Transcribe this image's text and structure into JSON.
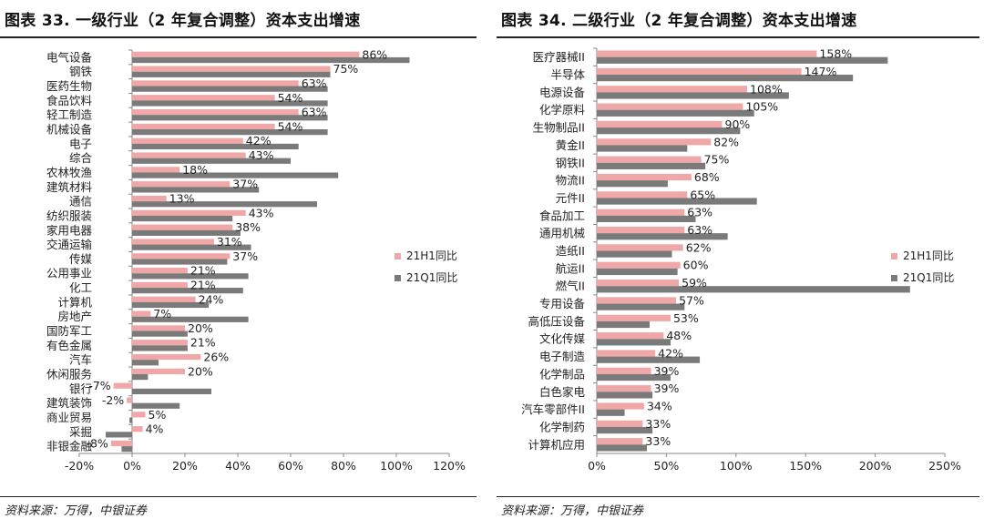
{
  "left": {
    "title": "图表 33. 一级行业（2 年复合调整）资本支出增速",
    "source": "资料来源：万得，中银证券"
  },
  "right": {
    "title": "图表 34. 二级行业（2 年复合调整）资本支出增速",
    "source": "资料来源：万得，中银证券"
  },
  "colors": {
    "h1": "#f0a7a8",
    "q1": "#7a7a7a",
    "axis": "#888888",
    "text": "#222222"
  },
  "chart_data": [
    {
      "type": "bar",
      "orientation": "horizontal",
      "title": "图表 33. 一级行业（2 年复合调整）资本支出增速",
      "categories": [
        "电气设备",
        "钢铁",
        "医药生物",
        "食品饮料",
        "轻工制造",
        "机械设备",
        "电子",
        "综合",
        "农林牧渔",
        "建筑材料",
        "通信",
        "纺织服装",
        "家用电器",
        "交通运输",
        "传媒",
        "公用事业",
        "化工",
        "计算机",
        "房地产",
        "国防军工",
        "有色金属",
        "汽车",
        "休闲服务",
        "银行",
        "建筑装饰",
        "商业贸易",
        "采掘",
        "非银金融"
      ],
      "series": [
        {
          "name": "21H1同比",
          "values": [
            86,
            75,
            63,
            54,
            63,
            54,
            42,
            43,
            18,
            37,
            13,
            43,
            38,
            31,
            37,
            21,
            21,
            24,
            7,
            20,
            21,
            26,
            20,
            -7,
            -2,
            5,
            4,
            -8
          ],
          "labels": [
            "86%",
            "75%",
            "63%",
            "54%",
            "63%",
            "54%",
            "42%",
            "43%",
            "18%",
            "37%",
            "13%",
            "43%",
            "38%",
            "31%",
            "37%",
            "21%",
            "21%",
            "24%",
            "7%",
            "20%",
            "21%",
            "26%",
            "20%",
            "-7%",
            "-2%",
            "5%",
            "4%",
            "-8%"
          ]
        },
        {
          "name": "21Q1同比",
          "values": [
            105,
            75,
            74,
            74,
            74,
            74,
            63,
            60,
            78,
            48,
            70,
            38,
            41,
            45,
            36,
            44,
            42,
            29,
            44,
            21,
            21,
            10,
            6,
            30,
            18,
            -1,
            -10,
            -4
          ]
        }
      ],
      "xlim": [
        -20,
        120
      ],
      "xticks": [
        -20,
        0,
        20,
        40,
        60,
        80,
        100,
        120
      ],
      "xtick_labels": [
        "-20%",
        "0%",
        "20%",
        "40%",
        "60%",
        "80%",
        "100%",
        "120%"
      ],
      "legend_position": "right"
    },
    {
      "type": "bar",
      "orientation": "horizontal",
      "title": "图表 34. 二级行业（2 年复合调整）资本支出增速",
      "categories": [
        "医疗器械II",
        "半导体",
        "电源设备",
        "化学原料",
        "生物制品II",
        "黄金II",
        "钢铁II",
        "物流II",
        "元件II",
        "食品加工",
        "通用机械",
        "造纸II",
        "航运II",
        "燃气II",
        "专用设备",
        "高低压设备",
        "文化传媒",
        "电子制造",
        "化学制品",
        "白色家电",
        "汽车零部件II",
        "化学制药",
        "计算机应用"
      ],
      "series": [
        {
          "name": "21H1同比",
          "values": [
            158,
            147,
            108,
            105,
            90,
            82,
            75,
            68,
            65,
            63,
            63,
            62,
            60,
            59,
            57,
            53,
            48,
            42,
            39,
            39,
            34,
            33,
            33
          ],
          "labels": [
            "158%",
            "147%",
            "108%",
            "105%",
            "90%",
            "82%",
            "75%",
            "68%",
            "65%",
            "63%",
            "63%",
            "62%",
            "60%",
            "59%",
            "57%",
            "53%",
            "48%",
            "42%",
            "39%",
            "39%",
            "34%",
            "33%",
            "33%"
          ]
        },
        {
          "name": "21Q1同比",
          "values": [
            209,
            184,
            138,
            113,
            103,
            65,
            78,
            51,
            115,
            71,
            94,
            54,
            58,
            225,
            63,
            38,
            53,
            74,
            53,
            40,
            20,
            40,
            36
          ]
        }
      ],
      "xlim": [
        0,
        250
      ],
      "xticks": [
        0,
        50,
        100,
        150,
        200,
        250
      ],
      "xtick_labels": [
        "0%",
        "50%",
        "100%",
        "150%",
        "200%",
        "250%"
      ],
      "legend_position": "right"
    }
  ]
}
